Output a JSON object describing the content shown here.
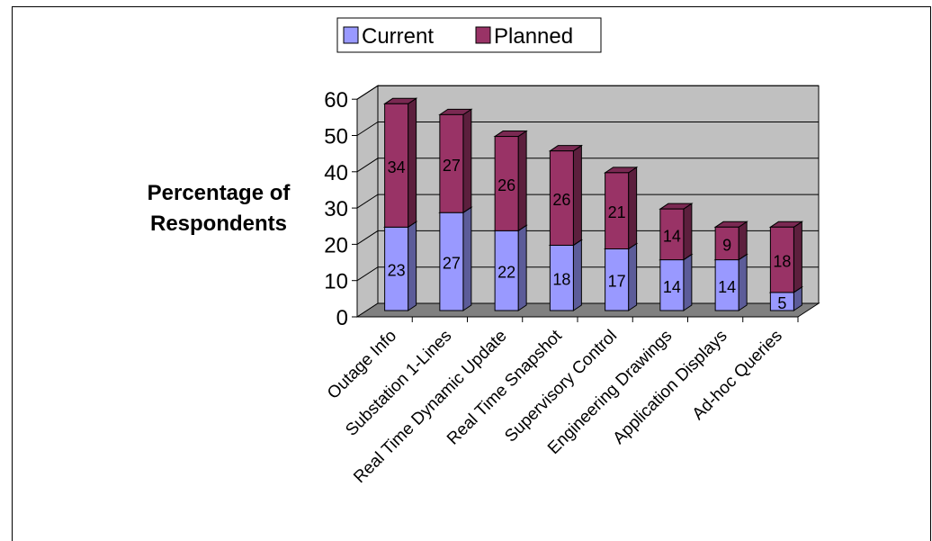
{
  "chart_data": {
    "type": "bar",
    "stacked": true,
    "style": "3d",
    "ylabel": "Percentage of Respondents",
    "xlabel": "",
    "ylim": [
      0,
      60
    ],
    "yticks": [
      "0",
      "10",
      "20",
      "30",
      "40",
      "50",
      "60"
    ],
    "grid": true,
    "legend_position": "top",
    "categories": [
      "Outage Info",
      "Substation 1-Lines",
      "Real Time Dynamic Update",
      "Real Time Snapshot",
      "Supervisory Control",
      "Engineering Drawings",
      "Application Displays",
      "Ad-hoc Queries"
    ],
    "series": [
      {
        "name": "Current",
        "color": "#9999ff",
        "values": [
          23,
          27,
          22,
          18,
          17,
          14,
          14,
          5
        ]
      },
      {
        "name": "Planned",
        "color": "#993366",
        "values": [
          34,
          27,
          26,
          26,
          21,
          14,
          9,
          18
        ]
      }
    ],
    "wall_color": "#c0c0c0",
    "floor_color": "#808080"
  }
}
